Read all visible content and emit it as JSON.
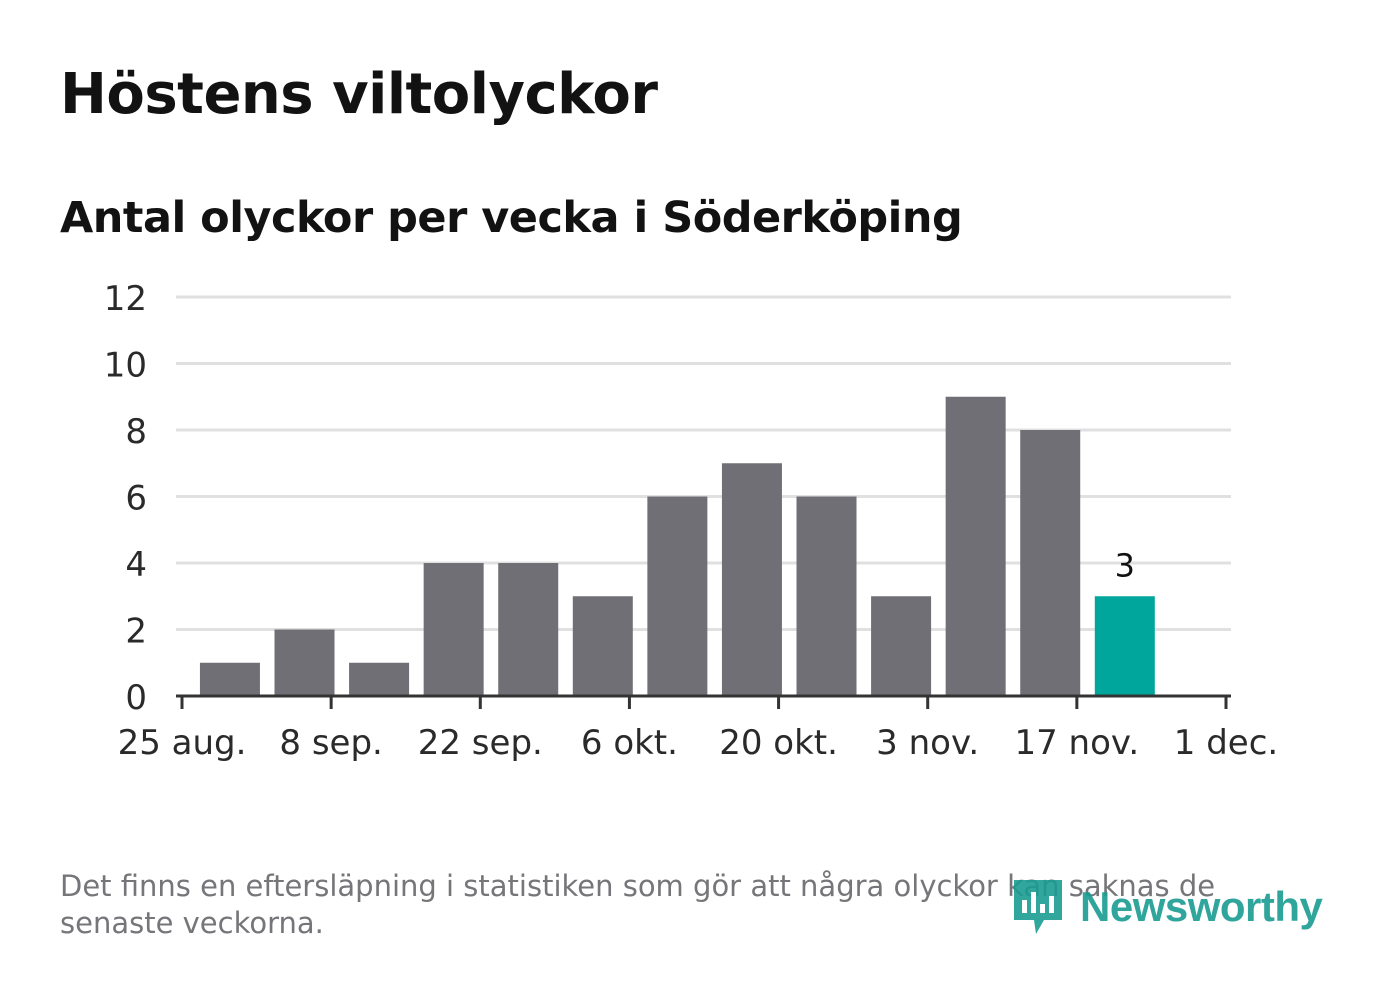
{
  "title": "Höstens viltolyckor",
  "subtitle": "Antal olyckor per vecka i Söderköping",
  "note": "Det finns en eftersläpning i statistiken som gör att några olyckor kan saknas de senaste veckorna.",
  "logo": {
    "text": "Newsworthy",
    "icon": "newsworthy-logo-icon",
    "color": "#1a9c92"
  },
  "colors": {
    "bar": "#706f75",
    "highlight": "#00a59b",
    "grid": "#e0e0e0",
    "axis": "#333333"
  },
  "chart_data": {
    "type": "bar",
    "title": "Antal olyckor per vecka i Söderköping",
    "xlabel": "",
    "ylabel": "",
    "ylim": [
      0,
      12
    ],
    "yticks": [
      0,
      2,
      4,
      6,
      8,
      10,
      12
    ],
    "x_range": [
      "2024-08-25",
      "2024-12-01"
    ],
    "xtick_labels": [
      "25 aug.",
      "8 sep.",
      "22 sep.",
      "6 okt.",
      "20 okt.",
      "3 nov.",
      "17 nov.",
      "1 dec."
    ],
    "categories": [
      "2024-08-26",
      "2024-09-02",
      "2024-09-09",
      "2024-09-16",
      "2024-09-23",
      "2024-09-30",
      "2024-10-07",
      "2024-10-14",
      "2024-10-21",
      "2024-10-28",
      "2024-11-04",
      "2024-11-11",
      "2024-11-18"
    ],
    "values": [
      1,
      2,
      1,
      4,
      4,
      3,
      6,
      7,
      6,
      3,
      9,
      8,
      3
    ],
    "highlight_last": true,
    "annotations": [
      {
        "category": "2024-11-18",
        "text": "3"
      }
    ],
    "grid": true
  }
}
